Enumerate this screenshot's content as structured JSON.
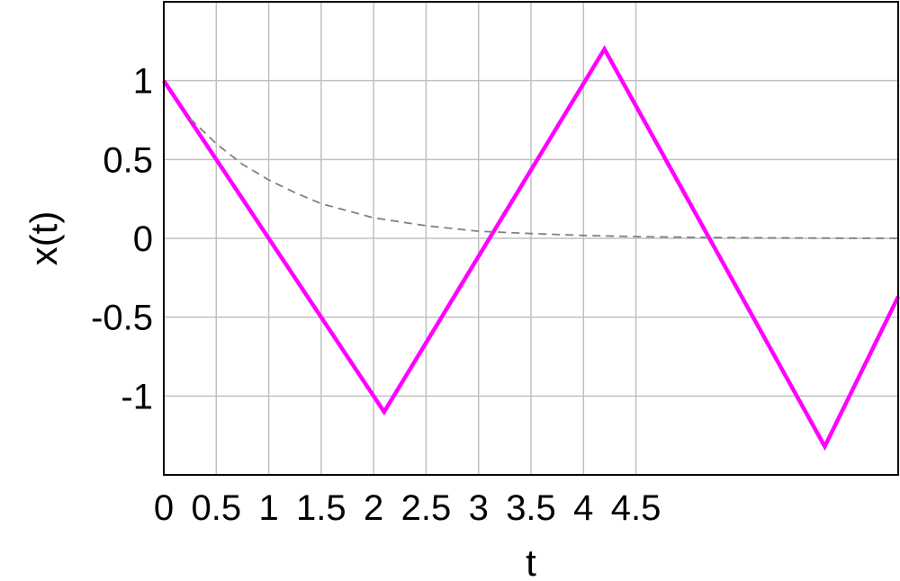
{
  "chart_data": {
    "type": "line",
    "title": "",
    "xlabel": "t",
    "ylabel": "x(t)",
    "xlim": [
      0,
      7.0
    ],
    "ylim": [
      -1.5,
      1.5
    ],
    "grid": true,
    "x_ticks": [
      0,
      0.5,
      1,
      1.5,
      2,
      2.5,
      3,
      3.5,
      4,
      4.5
    ],
    "x_tick_labels": [
      "0",
      "0.5",
      "1",
      "1.5",
      "2",
      "2.5",
      "3",
      "3.5",
      "4",
      "4.5"
    ],
    "y_ticks": [
      1,
      0.5,
      0,
      -0.5,
      -1
    ],
    "y_tick_labels": [
      "1",
      "0.5",
      "0",
      "-0.5",
      "-1"
    ],
    "series": [
      {
        "color": "#ff00ff",
        "style": "solid",
        "x": [
          0,
          2.1,
          4.2,
          6.3,
          7.0
        ],
        "y": [
          1.0,
          -1.1,
          1.2,
          -1.32,
          -0.37
        ]
      },
      {
        "color": "#808080",
        "style": "dashed",
        "x": [
          0.25,
          0.5,
          0.75,
          1.0,
          1.25,
          1.5,
          2.0,
          2.5,
          3.0,
          3.5,
          4.0,
          4.5,
          5.0,
          5.5,
          6.0,
          6.5,
          7.0
        ],
        "y": [
          0.76,
          0.6,
          0.47,
          0.37,
          0.29,
          0.22,
          0.13,
          0.08,
          0.045,
          0.03,
          0.018,
          0.011,
          0.007,
          0.004,
          0.002,
          0.001,
          0.0
        ]
      }
    ]
  }
}
